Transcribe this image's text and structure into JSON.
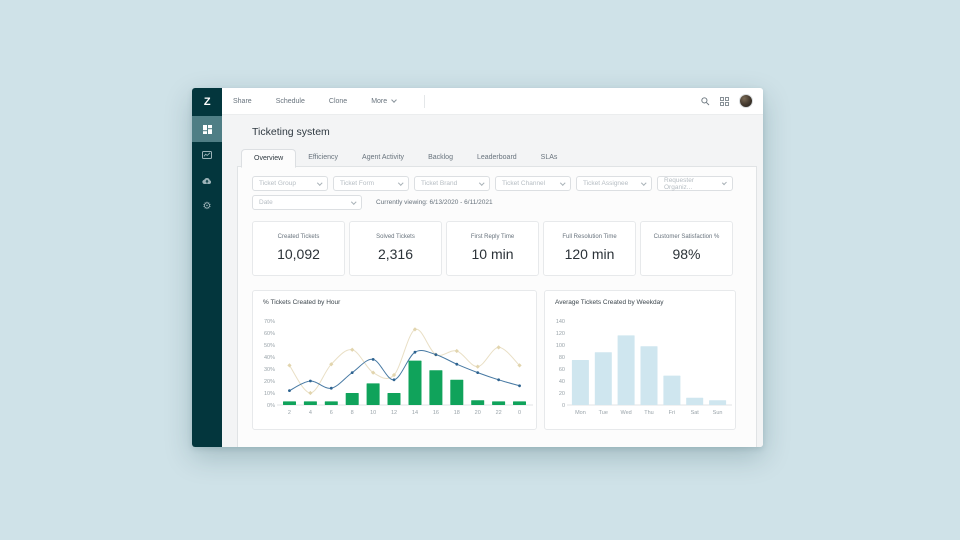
{
  "header": {
    "title": "Ticketing system"
  },
  "toolbar": {
    "share": "Share",
    "schedule": "Schedule",
    "clone": "Clone",
    "more": "More",
    "icons": [
      "search-icon",
      "apps-grid-icon",
      "user-avatar"
    ]
  },
  "sidebar": {
    "icons": [
      "zendesk-logo",
      "dashboard-icon",
      "reports-icon",
      "cloud-upload-icon",
      "settings-gear-icon"
    ],
    "logo_glyph": "Z"
  },
  "tabs": [
    {
      "label": "Overview",
      "active": true
    },
    {
      "label": "Efficiency",
      "active": false
    },
    {
      "label": "Agent Activity",
      "active": false
    },
    {
      "label": "Backlog",
      "active": false
    },
    {
      "label": "Leaderboard",
      "active": false
    },
    {
      "label": "SLAs",
      "active": false
    }
  ],
  "filters": {
    "row1": [
      "Ticket Group",
      "Ticket Form",
      "Ticket Brand",
      "Ticket Channel",
      "Ticket Assignee",
      "Requester Organiz..."
    ],
    "date_label": "Date",
    "viewing": "Currently viewing: 6/13/2020 - 6/11/2021"
  },
  "kpis": [
    {
      "label": "Created Tickets",
      "value": "10,092"
    },
    {
      "label": "Solved Tickets",
      "value": "2,316"
    },
    {
      "label": "First Reply Time",
      "value": "10 min"
    },
    {
      "label": "Full Resolution Time",
      "value": "120 min"
    },
    {
      "label": "Customer Satisfaction %",
      "value": "98%"
    }
  ],
  "colors": {
    "accent_green": "#10a35b",
    "line_blue": "#4779a3",
    "line_blue_marker": "#2e6390",
    "line_tan": "#e9dfc5",
    "line_tan_marker": "#e2d5ae",
    "bar_lightblue": "#cfe6ef",
    "sidebar": "#03363d",
    "axis_text": "#99a3a9"
  },
  "chart_data": [
    {
      "type": "bar",
      "title": "% Tickets Created by Hour",
      "categories": [
        "2",
        "4",
        "6",
        "8",
        "10",
        "12",
        "14",
        "16",
        "18",
        "20",
        "22",
        "0"
      ],
      "series": [
        {
          "name": "tickets-created-bars",
          "kind": "bar",
          "color_key": "accent_green",
          "values": [
            3,
            3,
            3,
            10,
            18,
            10,
            37,
            29,
            21,
            4,
            3,
            3
          ]
        },
        {
          "name": "comparison-line-tan",
          "kind": "line",
          "color_key": "line_tan",
          "marker": "diamond",
          "marker_color_key": "line_tan_marker",
          "values": [
            33,
            10,
            34,
            46,
            27,
            25,
            63,
            42,
            45,
            32,
            48,
            33
          ]
        },
        {
          "name": "trend-line-blue",
          "kind": "line",
          "color_key": "line_blue",
          "marker": "circle",
          "marker_color_key": "line_blue_marker",
          "values": [
            12,
            20,
            14,
            27,
            38,
            21,
            44,
            42,
            34,
            27,
            21,
            16
          ]
        }
      ],
      "ylim": [
        0,
        70
      ],
      "yticks": [
        0,
        10,
        20,
        30,
        40,
        50,
        60,
        70
      ],
      "ytick_suffix": "%",
      "grid": false,
      "legend": "none"
    },
    {
      "type": "bar",
      "title": "Average Tickets Created by Weekday",
      "categories": [
        "Mon",
        "Tue",
        "Wed",
        "Thu",
        "Fri",
        "Sat",
        "Sun"
      ],
      "series": [
        {
          "name": "avg-tickets-bars",
          "kind": "bar",
          "color_key": "bar_lightblue",
          "values": [
            75,
            88,
            116,
            98,
            49,
            12,
            8
          ]
        }
      ],
      "ylim": [
        0,
        140
      ],
      "yticks": [
        0,
        20,
        40,
        60,
        80,
        100,
        120,
        140
      ],
      "ytick_suffix": "",
      "grid": false,
      "legend": "none"
    }
  ]
}
